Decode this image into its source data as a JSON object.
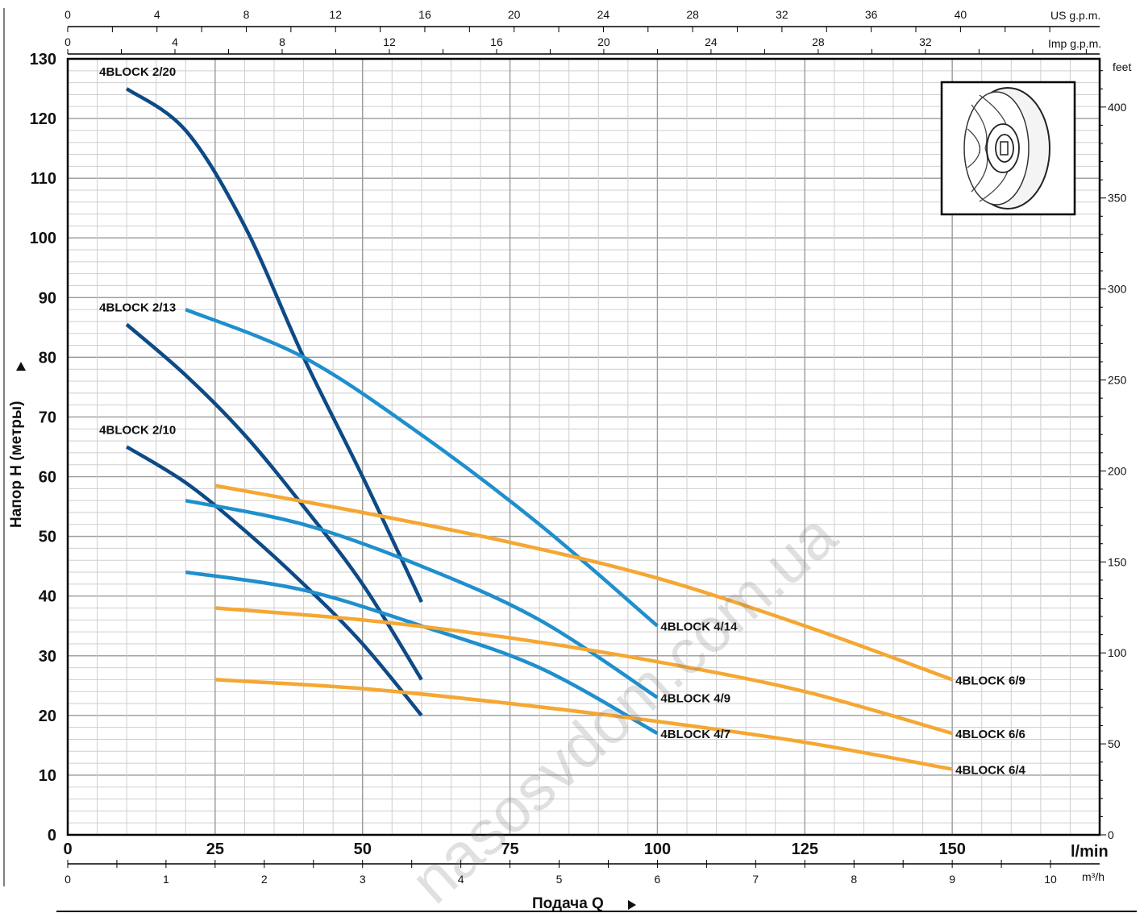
{
  "chart_data": {
    "type": "line",
    "ylabel": "Напор H (метры)",
    "xlabel": "Подача Q",
    "x_unit_primary": "l/min",
    "x_unit_m3h": "m³/h",
    "x_unit_us": "US g.p.m.",
    "x_unit_imp": "Imp g.p.m.",
    "y_unit_right": "feet",
    "xlim": [
      0,
      175
    ],
    "ylim": [
      0,
      130
    ],
    "x_ticks_lmin": [
      0,
      25,
      50,
      75,
      100,
      125,
      150
    ],
    "x_ticks_m3h": [
      0,
      1,
      2,
      3,
      4,
      5,
      6,
      7,
      8,
      9,
      10
    ],
    "x_ticks_us": [
      0,
      4,
      8,
      12,
      16,
      20,
      24,
      28,
      32,
      36,
      40
    ],
    "x_ticks_imp": [
      0,
      4,
      8,
      12,
      16,
      20,
      24,
      28,
      32
    ],
    "y_ticks": [
      0,
      10,
      20,
      30,
      40,
      50,
      60,
      70,
      80,
      90,
      100,
      110,
      120,
      130
    ],
    "y_ticks_feet": [
      0,
      50,
      100,
      150,
      200,
      250,
      300,
      350,
      400
    ],
    "grid": true,
    "series": [
      {
        "name": "4BLOCK 2/20",
        "color": "#0d4a86",
        "x": [
          10,
          20,
          30,
          40,
          50,
          60
        ],
        "y": [
          125,
          118,
          102,
          80,
          60,
          39
        ]
      },
      {
        "name": "4BLOCK 2/13",
        "color": "#0d4a86",
        "x": [
          10,
          20,
          30,
          40,
          50,
          60
        ],
        "y": [
          85.5,
          77,
          67,
          55,
          42,
          26
        ]
      },
      {
        "name": "4BLOCK 2/10",
        "color": "#0d4a86",
        "x": [
          10,
          20,
          30,
          40,
          50,
          60
        ],
        "y": [
          65,
          59,
          51,
          42,
          32,
          20
        ]
      },
      {
        "name": "4BLOCK 4/14",
        "color": "#1f8fcd",
        "x": [
          20,
          40,
          60,
          80,
          100
        ],
        "y": [
          88,
          80,
          67,
          52,
          35
        ]
      },
      {
        "name": "4BLOCK 4/9",
        "color": "#1f8fcd",
        "x": [
          20,
          40,
          60,
          80,
          100
        ],
        "y": [
          56,
          52,
          45,
          36,
          23
        ]
      },
      {
        "name": "4BLOCK 4/7",
        "color": "#1f8fcd",
        "x": [
          20,
          40,
          60,
          80,
          100
        ],
        "y": [
          44,
          41,
          35,
          28,
          17
        ]
      },
      {
        "name": "4BLOCK 6/9",
        "color": "#f5a733",
        "x": [
          25,
          50,
          75,
          100,
          125,
          150
        ],
        "y": [
          58.5,
          54,
          49,
          43,
          35,
          26
        ]
      },
      {
        "name": "4BLOCK 6/6",
        "color": "#f5a733",
        "x": [
          25,
          50,
          75,
          100,
          125,
          150
        ],
        "y": [
          38,
          36,
          33,
          29,
          24,
          17
        ]
      },
      {
        "name": "4BLOCK 6/4",
        "color": "#f5a733",
        "x": [
          25,
          50,
          75,
          100,
          125,
          150
        ],
        "y": [
          26,
          24.5,
          22,
          19,
          15.5,
          11
        ]
      }
    ]
  },
  "watermark_text": "nasosvdom.com.ua",
  "impeller_icon": "impeller-drawing"
}
